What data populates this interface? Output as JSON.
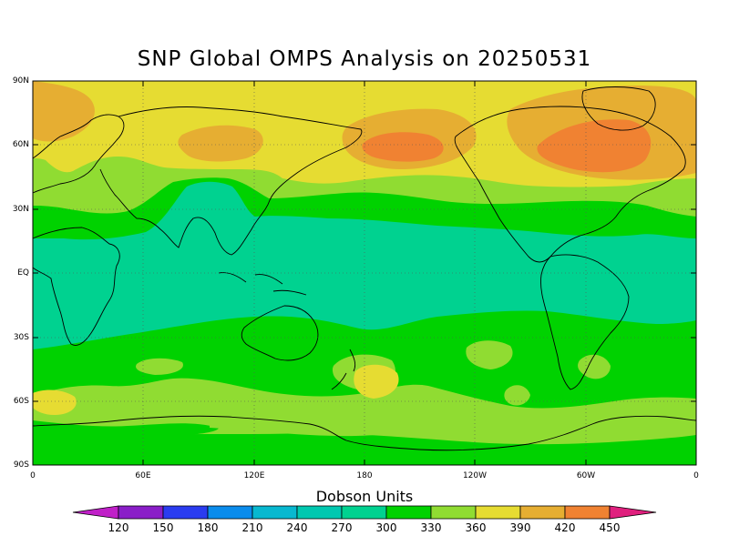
{
  "title": "SNP Global OMPS Analysis on 20250531",
  "lat_labels": [
    "90N",
    "60N",
    "30N",
    "EQ",
    "30S",
    "60S",
    "90S"
  ],
  "lon_labels": [
    "0",
    "60E",
    "120E",
    "180",
    "120W",
    "60W",
    "0"
  ],
  "colorbar": {
    "title": "Dobson Units",
    "values": [
      "120",
      "150",
      "180",
      "210",
      "240",
      "270",
      "300",
      "330",
      "360",
      "390",
      "420",
      "450"
    ],
    "low_color": "#c020c8",
    "colors": [
      "#8a1ec8",
      "#2a3cf0",
      "#0a8cec",
      "#08b8d0",
      "#00c8b0",
      "#00d290",
      "#00d200",
      "#90dc32",
      "#e6dc32",
      "#e6ae32",
      "#f08232",
      "#f00000"
    ],
    "high_color": "#e0207e"
  },
  "map_colors": {
    "band_270_300": "#00d290",
    "band_300_330": "#00d200",
    "band_330_360": "#90dc32",
    "band_360_390": "#e6dc32",
    "band_390_420": "#e6ae32",
    "band_420_450": "#f08232"
  }
}
